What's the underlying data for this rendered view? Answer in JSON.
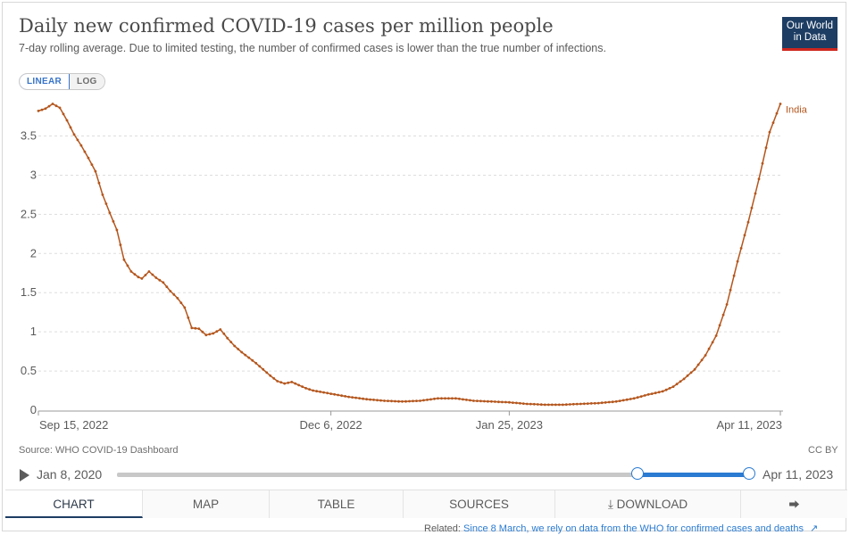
{
  "header": {
    "title": "Daily new confirmed COVID-19 cases per million people",
    "subtitle": "7-day rolling average. Due to limited testing, the number of confirmed cases is lower than the true number of infections.",
    "logo_line1": "Our World",
    "logo_line2": "in Data"
  },
  "scale_toggle": {
    "linear_label": "LINEAR",
    "log_label": "LOG",
    "selected": "LINEAR"
  },
  "chart_data": {
    "type": "line",
    "xlabel": "",
    "ylabel": "",
    "y_ticks": [
      0,
      0.5,
      1,
      1.5,
      2,
      2.5,
      3,
      3.5
    ],
    "y_tick_labels": [
      "0",
      "0.5",
      "1",
      "1.5",
      "2",
      "2.5",
      "3",
      "3.5"
    ],
    "ylim": [
      0,
      3.95
    ],
    "x_range": [
      "2022-09-15",
      "2023-04-11"
    ],
    "x_tick_labels": [
      "Sep 15, 2022",
      "Dec 6, 2022",
      "Jan 25, 2023",
      "Apr 11, 2023"
    ],
    "x_tick_dates": [
      "2022-09-15",
      "2022-12-06",
      "2023-01-25",
      "2023-04-11"
    ],
    "grid": "horizontal dashed",
    "series": [
      {
        "name": "India",
        "color": "#b4561d",
        "label_placement": "end",
        "points": [
          [
            "2022-09-15",
            3.82
          ],
          [
            "2022-09-17",
            3.85
          ],
          [
            "2022-09-19",
            3.91
          ],
          [
            "2022-09-21",
            3.86
          ],
          [
            "2022-09-23",
            3.7
          ],
          [
            "2022-09-25",
            3.52
          ],
          [
            "2022-09-27",
            3.38
          ],
          [
            "2022-09-29",
            3.22
          ],
          [
            "2022-10-01",
            3.05
          ],
          [
            "2022-10-03",
            2.75
          ],
          [
            "2022-10-05",
            2.52
          ],
          [
            "2022-10-07",
            2.3
          ],
          [
            "2022-10-09",
            1.92
          ],
          [
            "2022-10-11",
            1.77
          ],
          [
            "2022-10-13",
            1.7
          ],
          [
            "2022-10-14",
            1.68
          ],
          [
            "2022-10-16",
            1.77
          ],
          [
            "2022-10-18",
            1.69
          ],
          [
            "2022-10-20",
            1.63
          ],
          [
            "2022-10-22",
            1.52
          ],
          [
            "2022-10-24",
            1.43
          ],
          [
            "2022-10-26",
            1.31
          ],
          [
            "2022-10-28",
            1.05
          ],
          [
            "2022-10-30",
            1.04
          ],
          [
            "2022-11-01",
            0.96
          ],
          [
            "2022-11-03",
            0.98
          ],
          [
            "2022-11-05",
            1.03
          ],
          [
            "2022-11-07",
            0.92
          ],
          [
            "2022-11-09",
            0.82
          ],
          [
            "2022-11-11",
            0.74
          ],
          [
            "2022-11-13",
            0.67
          ],
          [
            "2022-11-15",
            0.6
          ],
          [
            "2022-11-17",
            0.52
          ],
          [
            "2022-11-19",
            0.44
          ],
          [
            "2022-11-21",
            0.37
          ],
          [
            "2022-11-23",
            0.34
          ],
          [
            "2022-11-25",
            0.36
          ],
          [
            "2022-11-27",
            0.32
          ],
          [
            "2022-11-29",
            0.28
          ],
          [
            "2022-12-01",
            0.25
          ],
          [
            "2022-12-06",
            0.21
          ],
          [
            "2022-12-11",
            0.17
          ],
          [
            "2022-12-16",
            0.14
          ],
          [
            "2022-12-21",
            0.12
          ],
          [
            "2022-12-26",
            0.11
          ],
          [
            "2022-12-31",
            0.12
          ],
          [
            "2023-01-05",
            0.15
          ],
          [
            "2023-01-10",
            0.15
          ],
          [
            "2023-01-15",
            0.12
          ],
          [
            "2023-01-20",
            0.11
          ],
          [
            "2023-01-25",
            0.1
          ],
          [
            "2023-01-30",
            0.08
          ],
          [
            "2023-02-04",
            0.07
          ],
          [
            "2023-02-09",
            0.07
          ],
          [
            "2023-02-14",
            0.08
          ],
          [
            "2023-02-19",
            0.09
          ],
          [
            "2023-02-24",
            0.11
          ],
          [
            "2023-03-01",
            0.15
          ],
          [
            "2023-03-05",
            0.2
          ],
          [
            "2023-03-09",
            0.24
          ],
          [
            "2023-03-12",
            0.3
          ],
          [
            "2023-03-15",
            0.4
          ],
          [
            "2023-03-18",
            0.52
          ],
          [
            "2023-03-21",
            0.7
          ],
          [
            "2023-03-24",
            0.95
          ],
          [
            "2023-03-27",
            1.35
          ],
          [
            "2023-03-30",
            1.9
          ],
          [
            "2023-04-02",
            2.4
          ],
          [
            "2023-04-05",
            2.95
          ],
          [
            "2023-04-08",
            3.55
          ],
          [
            "2023-04-11",
            3.91
          ]
        ]
      }
    ]
  },
  "footer": {
    "source": "Source: WHO COVID-19 Dashboard",
    "license": "CC BY"
  },
  "timeline": {
    "start_label": "Jan 8, 2020",
    "end_label": "Apr 11, 2023",
    "range_start_fraction": 0.823,
    "range_end_fraction": 1.0
  },
  "tabs": [
    {
      "label": "CHART",
      "active": true
    },
    {
      "label": "MAP",
      "active": false
    },
    {
      "label": "TABLE",
      "active": false
    },
    {
      "label": "SOURCES",
      "active": false
    },
    {
      "label": "DOWNLOAD",
      "active": false
    }
  ],
  "related": {
    "prefix": "Related:",
    "link_text": "Since 8 March, we rely on data from the WHO for confirmed cases and deaths"
  }
}
